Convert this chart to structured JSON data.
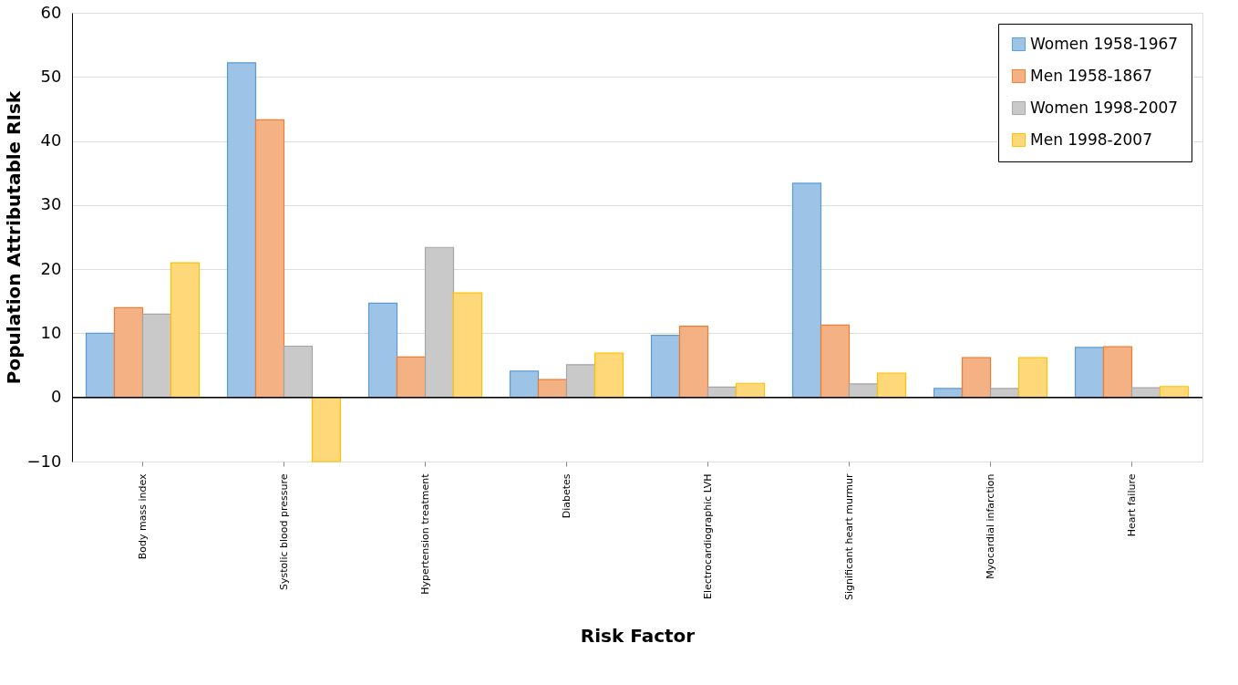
{
  "chart_data": {
    "type": "bar",
    "xlabel": "Risk Factor",
    "ylabel": "Population Attributable RIsk",
    "categories": [
      "Body mass index",
      "Systolic blood pressure",
      "Hypertension treatment",
      "Diabetes",
      "Electrocardiographic LVH",
      "Significant heart murmur",
      "Myocardial infarction",
      "Heart failure"
    ],
    "series": [
      {
        "name": "Women 1958-1967",
        "color": "#9dc3e6",
        "values": [
          10,
          52.2,
          14.7,
          4.1,
          9.7,
          33.4,
          1.4,
          7.8
        ]
      },
      {
        "name": "Men 1958-1867",
        "color": "#f4b183",
        "values": [
          14,
          43.3,
          6.3,
          2.8,
          11.1,
          11.3,
          6.2,
          7.9
        ]
      },
      {
        "name": "Women 1998-2007",
        "color": "#c9c9c9",
        "values": [
          13,
          8,
          23.4,
          5.1,
          1.6,
          2.1,
          1.4,
          1.5
        ]
      },
      {
        "name": "Men 1998-2007",
        "color": "#ffd87a",
        "values": [
          21,
          -10,
          16.3,
          6.9,
          2.2,
          3.8,
          6.2,
          1.7
        ]
      }
    ],
    "ylim": [
      -10,
      60
    ],
    "yticks": [
      -10,
      0,
      10,
      20,
      30,
      40,
      50,
      60
    ],
    "grid": "y",
    "legend": "top right"
  }
}
